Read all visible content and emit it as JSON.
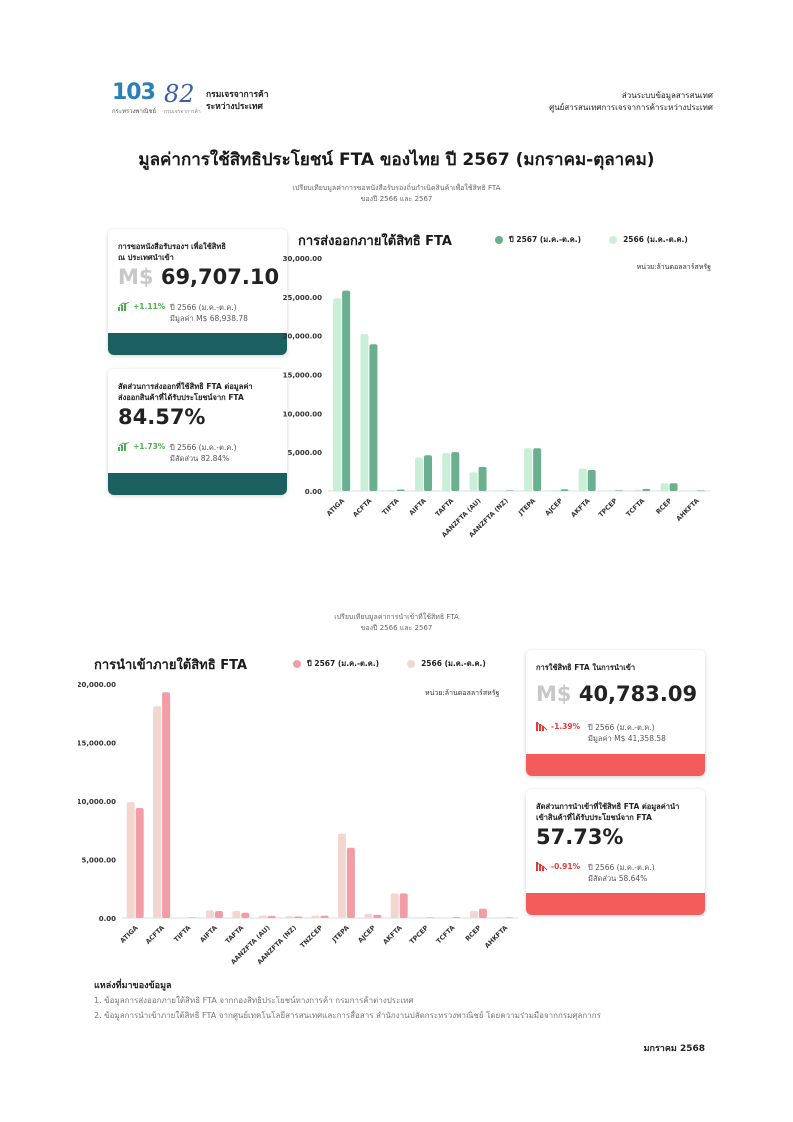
{
  "header": {
    "logo_103": "103",
    "logo_103_sub": "กระทรวงพาณิชย์",
    "logo_82": "82",
    "logo_82_sub": "กรมเจรจาการค้า",
    "dept_line1": "กรมเจรจาการค้า",
    "dept_line2": "ระหว่างประเทศ",
    "right_line1": "ส่วนระบบข้อมูลสารสนเทศ",
    "right_line2": "ศูนย์สารสนเทศการเจรจาการค้าระหว่างประเทศ"
  },
  "title": "มูลค่าการใช้สิทธิประโยชน์ FTA ของไทย ปี 2567 (มกราคม-ตุลาคม)",
  "export_section": {
    "subtitle_line1": "เปรียบเทียบมูลค่าการขอหนังสือรับรองถิ่นกำเนิดสินค้าเพื่อใช้สิทธิ FTA",
    "subtitle_line2": "ของปี 2566 และ 2567",
    "card1": {
      "label_line1": "การขอหนังสือรับรองฯ เพื่อใช้สิทธิ",
      "label_line2": "ณ ประเทศนำเข้า",
      "currency": "M$",
      "value": "69,707.10",
      "change": "+1.11%",
      "prev_line1": "ปี 2566 (ม.ค.-ต.ค.)",
      "prev_line2": "มีมูลค่า M$ 68,938.78"
    },
    "card2": {
      "label_line1": "สัดส่วนการส่งออกที่ใช้สิทธิ FTA ต่อมูลค่า",
      "label_line2": "ส่งออกสินค้าที่ได้รับประโยชน์จาก FTA",
      "value": "84.57%",
      "change": "+1.73%",
      "prev_line1": "ปี 2566 (ม.ค.-ต.ค.)",
      "prev_line2": "มีสัดส่วน 82.84%"
    },
    "chart_title": "การส่งออกภายใต้สิทธิ FTA",
    "unit": "หน่วย:ล้านดอลลาร์สหรัฐ"
  },
  "import_section": {
    "subtitle_line1": "เปรียบเทียบมูลค่าการนำเข้าที่ใช้สิทธิ FTA",
    "subtitle_line2": "ของปี 2566 และ 2567",
    "card1": {
      "label_line1": "การใช้สิทธิ FTA ในการนำเข้า",
      "currency": "M$",
      "value": "40,783.09",
      "change": "-1.39%",
      "prev_line1": "ปี 2566 (ม.ค.-ต.ค.)",
      "prev_line2": "มีมูลค่า M$ 41,358.58"
    },
    "card2": {
      "label_line1": "สัดส่วนการนำเข้าที่ใช้สิทธิ FTA ต่อมูลค่านำ",
      "label_line2": "เข้าสินค้าที่ได้รับประโยชน์จาก FTA",
      "value": "57.73%",
      "change": "-0.91%",
      "prev_line1": "ปี 2566 (ม.ค.-ต.ค.)",
      "prev_line2": "มีสัดส่วน 58.64%"
    },
    "chart_title": "การนำเข้าภายใต้สิทธิ FTA",
    "unit": "หน่วย:ล้านดอลลาร์สหรัฐ"
  },
  "sources": {
    "title": "แหล่งที่มาของข้อมูล",
    "item1": "1. ข้อมูลการส่งออกภายใต้สิทธิ FTA จากกองสิทธิประโยชน์ทางการค้า กรมการค้าต่างประเทศ",
    "item2": "2. ข้อมูลการนำเข้าภายใต้สิทธิ FTA  จากศูนย์เทคโนโลยีสารสนเทศและการสื่อสาร สำนักงานปลัดกระทรวงพาณิชย์ โดยความร่วมมือจากกรมศุลกากร"
  },
  "footer_date": "มกราคม 2568",
  "colors": {
    "export_2567": "#6aaf8f",
    "export_2566": "#c9efd8",
    "import_2567": "#f29ca6",
    "import_2566": "#f3d6cf",
    "teal_bar": "#1c5f60",
    "red_bar": "#f45b5b",
    "up": "#4caf50",
    "down": "#e53935"
  },
  "chart_data": [
    {
      "type": "bar",
      "title": "การส่งออกภายใต้สิทธิ FTA",
      "categories": [
        "ATIGA",
        "ACFTA",
        "TIFTA",
        "AIFTA",
        "TAFTA",
        "AANZFTA (AU)",
        "AANZFTA (NZ)",
        "JTEPA",
        "AJCEP",
        "AKFTA",
        "TPCEP",
        "TCFTA",
        "RCEP",
        "AHKFTA"
      ],
      "series": [
        {
          "name": "2566 (ม.ค.-ต.ค.)",
          "values": [
            24800,
            20200,
            120,
            4300,
            4900,
            2400,
            60,
            5500,
            120,
            2900,
            30,
            180,
            1000,
            20
          ]
        },
        {
          "name": "ปี 2567 (ม.ค.-ต.ค.)",
          "values": [
            25800,
            18900,
            200,
            4600,
            5000,
            3100,
            80,
            5500,
            220,
            2700,
            40,
            280,
            1000,
            30
          ]
        }
      ],
      "yticks": [
        "0.00",
        "5,000.00",
        "10,000.00",
        "15,000.00",
        "20,000.00",
        "25,000.00",
        "30,000.00"
      ],
      "ylim": [
        0,
        30000
      ],
      "legend": "top-right",
      "grid": false
    },
    {
      "type": "bar",
      "title": "การนำเข้าภายใต้สิทธิ FTA",
      "categories": [
        "ATIGA",
        "ACFTA",
        "TIFTA",
        "AIFTA",
        "TAFTA",
        "AANZFTA (AU)",
        "AANZFTA (NZ)",
        "TNZCEP",
        "JTEPA",
        "AJCEP",
        "AKFTA",
        "TPCEP",
        "TCFTA",
        "RCEP",
        "AHKFTA"
      ],
      "series": [
        {
          "name": "2566 (ม.ค.-ต.ค.)",
          "values": [
            9900,
            18100,
            20,
            650,
            600,
            200,
            150,
            200,
            7200,
            350,
            2100,
            20,
            50,
            600,
            10
          ]
        },
        {
          "name": "ปี 2567 (ม.ค.-ต.ค.)",
          "values": [
            9400,
            19300,
            20,
            600,
            450,
            180,
            130,
            200,
            6000,
            280,
            2100,
            20,
            80,
            800,
            10
          ]
        }
      ],
      "yticks": [
        "0.00",
        "5,000.00",
        "10,000.00",
        "15,000.00",
        "20,000.00"
      ],
      "ylim": [
        0,
        20000
      ],
      "legend": "top-right",
      "grid": false
    }
  ]
}
